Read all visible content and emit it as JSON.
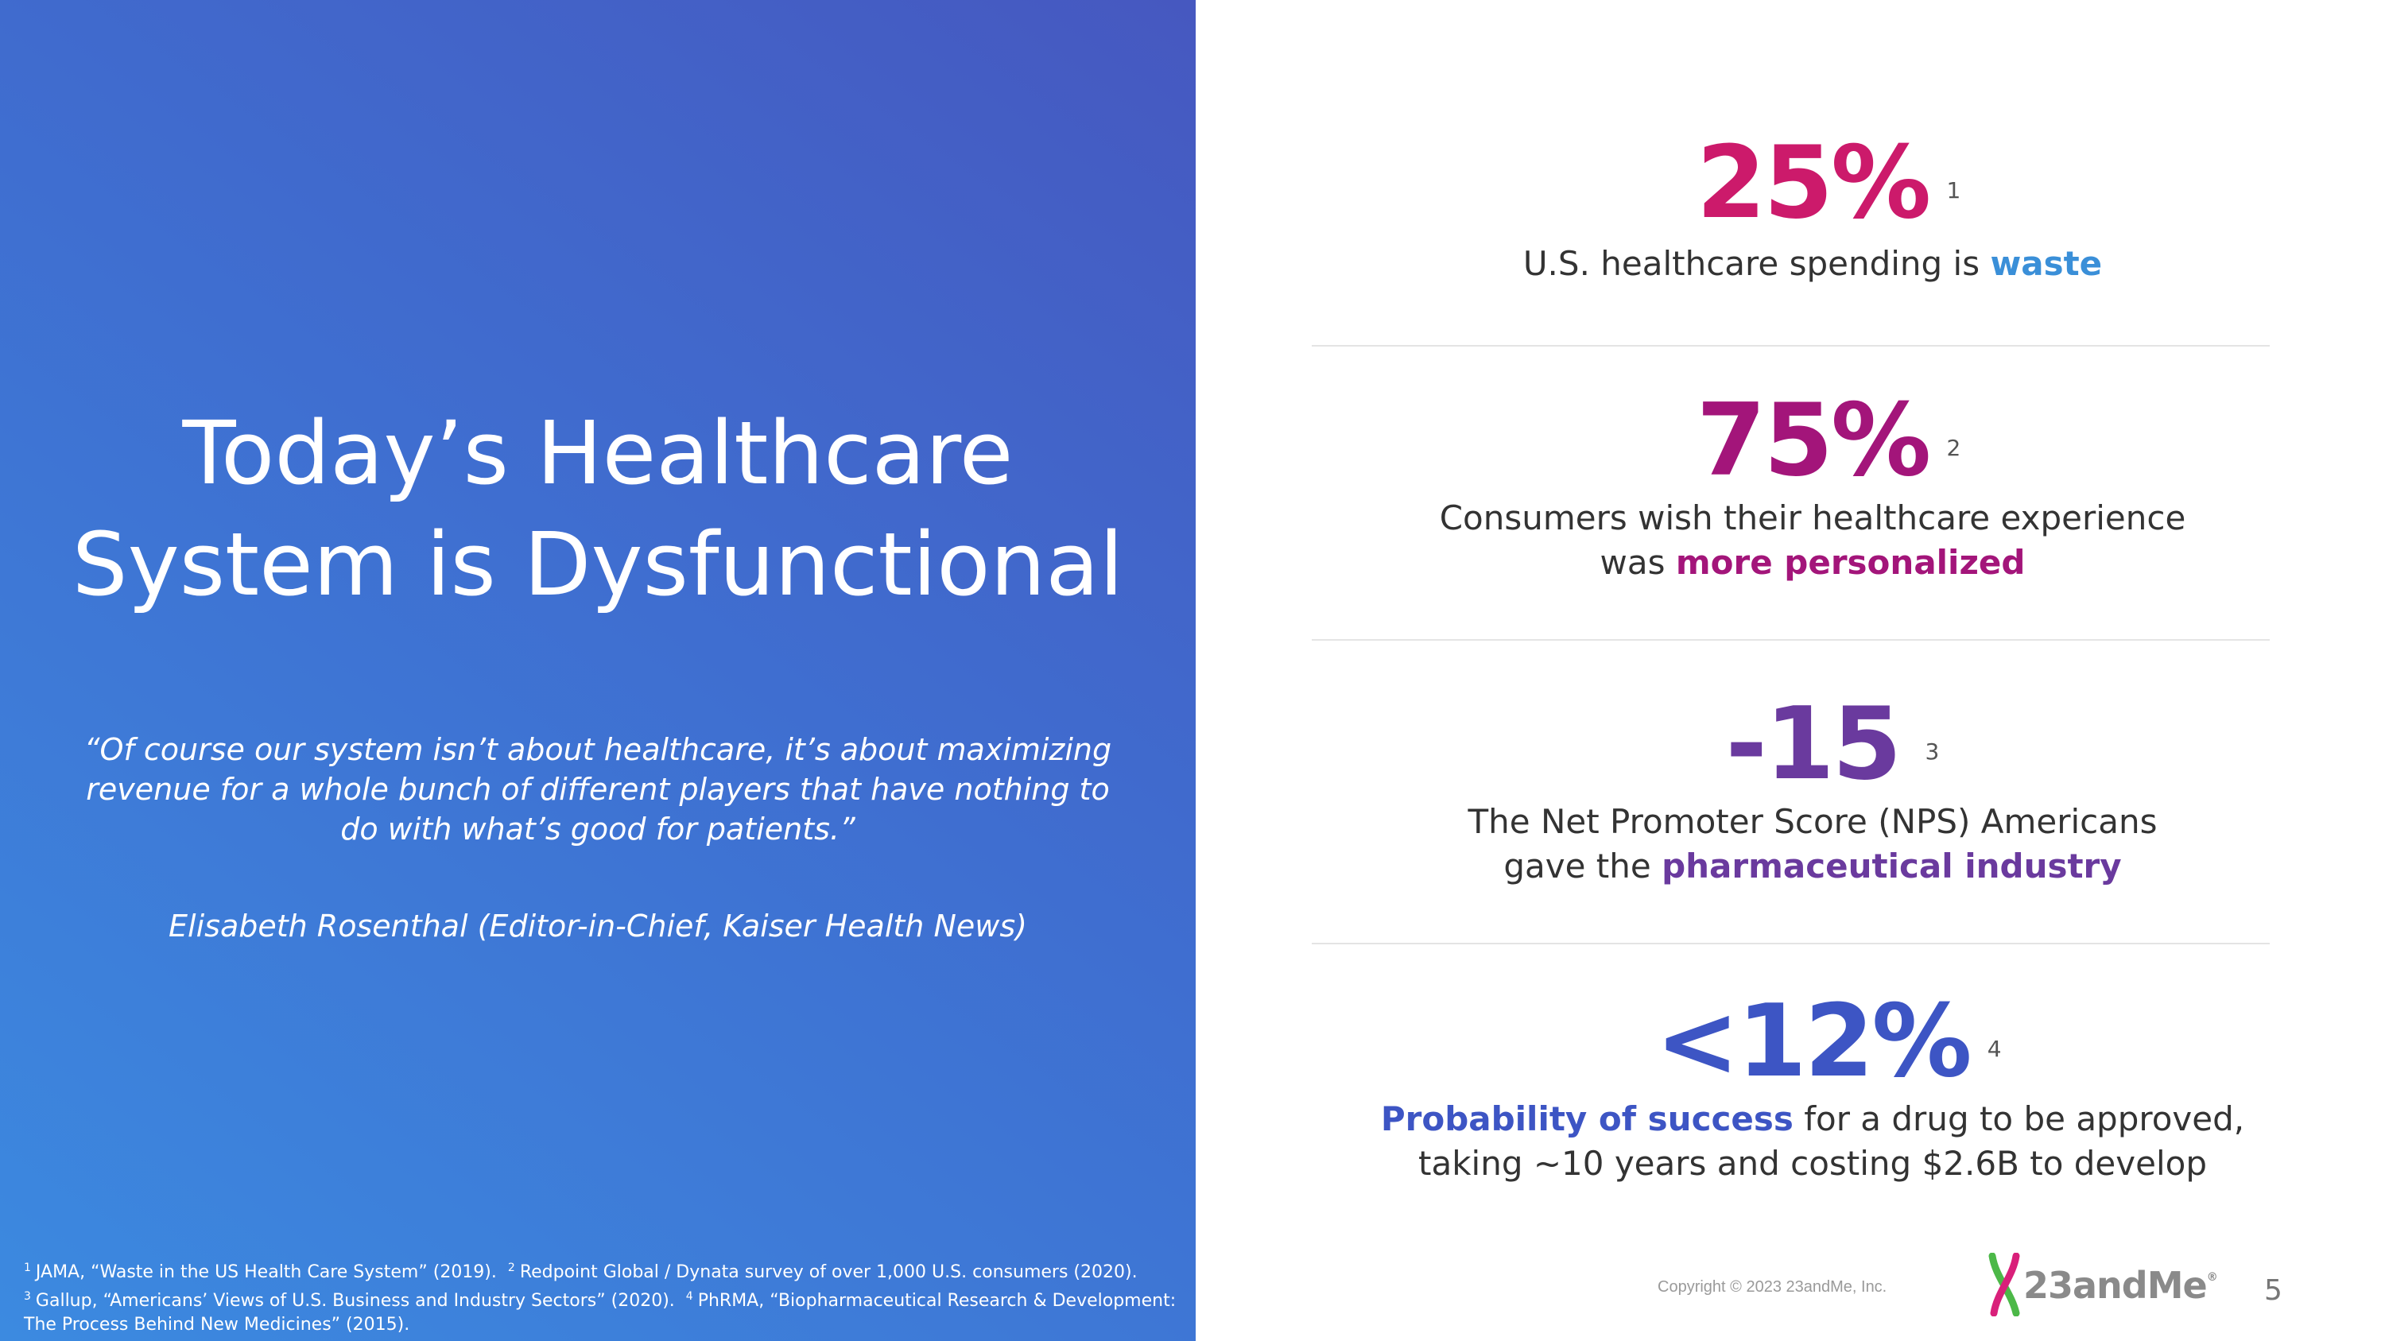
{
  "title": {
    "line1": "Today’s Healthcare",
    "line2": "System is Dysfunctional"
  },
  "quote": {
    "text": "“Of course our system isn’t about healthcare, it’s about maximizing revenue for a whole bunch of different players that have nothing to do with what’s good for patients.”",
    "author": "Elisabeth Rosenthal (Editor-in-Chief, Kaiser Health News)"
  },
  "footnotes": {
    "n1": "1",
    "t1": "JAMA, “Waste in the US Health Care System” (2019).",
    "n2": "2",
    "t2": "Redpoint Global / Dynata survey of over 1,000 U.S. consumers (2020).",
    "n3": "3",
    "t3": "Gallup, “Americans’ Views of U.S. Business and Industry Sectors” (2020).",
    "n4": "4",
    "t4": "PhRMA, “Biopharmaceutical Research & Development: The Process Behind New Medicines” (2015)."
  },
  "stats": [
    {
      "value": "25%",
      "footnote": "1",
      "color": "#cc1a6b",
      "line1_pre": "U.S. healthcare spending is ",
      "line1_em": "waste",
      "em_color": "#3a8fd8"
    },
    {
      "value": "75%",
      "footnote": "2",
      "color": "#a3157a",
      "line1": "Consumers wish their healthcare experience",
      "line2_pre": "was ",
      "line2_em": "more personalized",
      "em_color": "#a3157a"
    },
    {
      "value": "-15",
      "footnote": "3",
      "color": "#6a3a9e",
      "line1": "The Net Promoter Score (NPS) Americans",
      "line2_pre": "gave the ",
      "line2_em": "pharmaceutical industry",
      "em_color": "#6a3a9e"
    },
    {
      "value": "<12%",
      "footnote": "4",
      "color": "#3d55c4",
      "line1_em": "Probability of success",
      "line1_post": " for a drug to be approved,",
      "line2": "taking ~10 years and costing $2.6B to develop",
      "em_color": "#3d55c4"
    }
  ],
  "copyright": "Copyright © 2023 23andMe, Inc.",
  "logo": {
    "text": "23andMe",
    "mark": "®",
    "x_green": "#4cb848",
    "x_pink": "#d9207a"
  },
  "page_number": "5"
}
